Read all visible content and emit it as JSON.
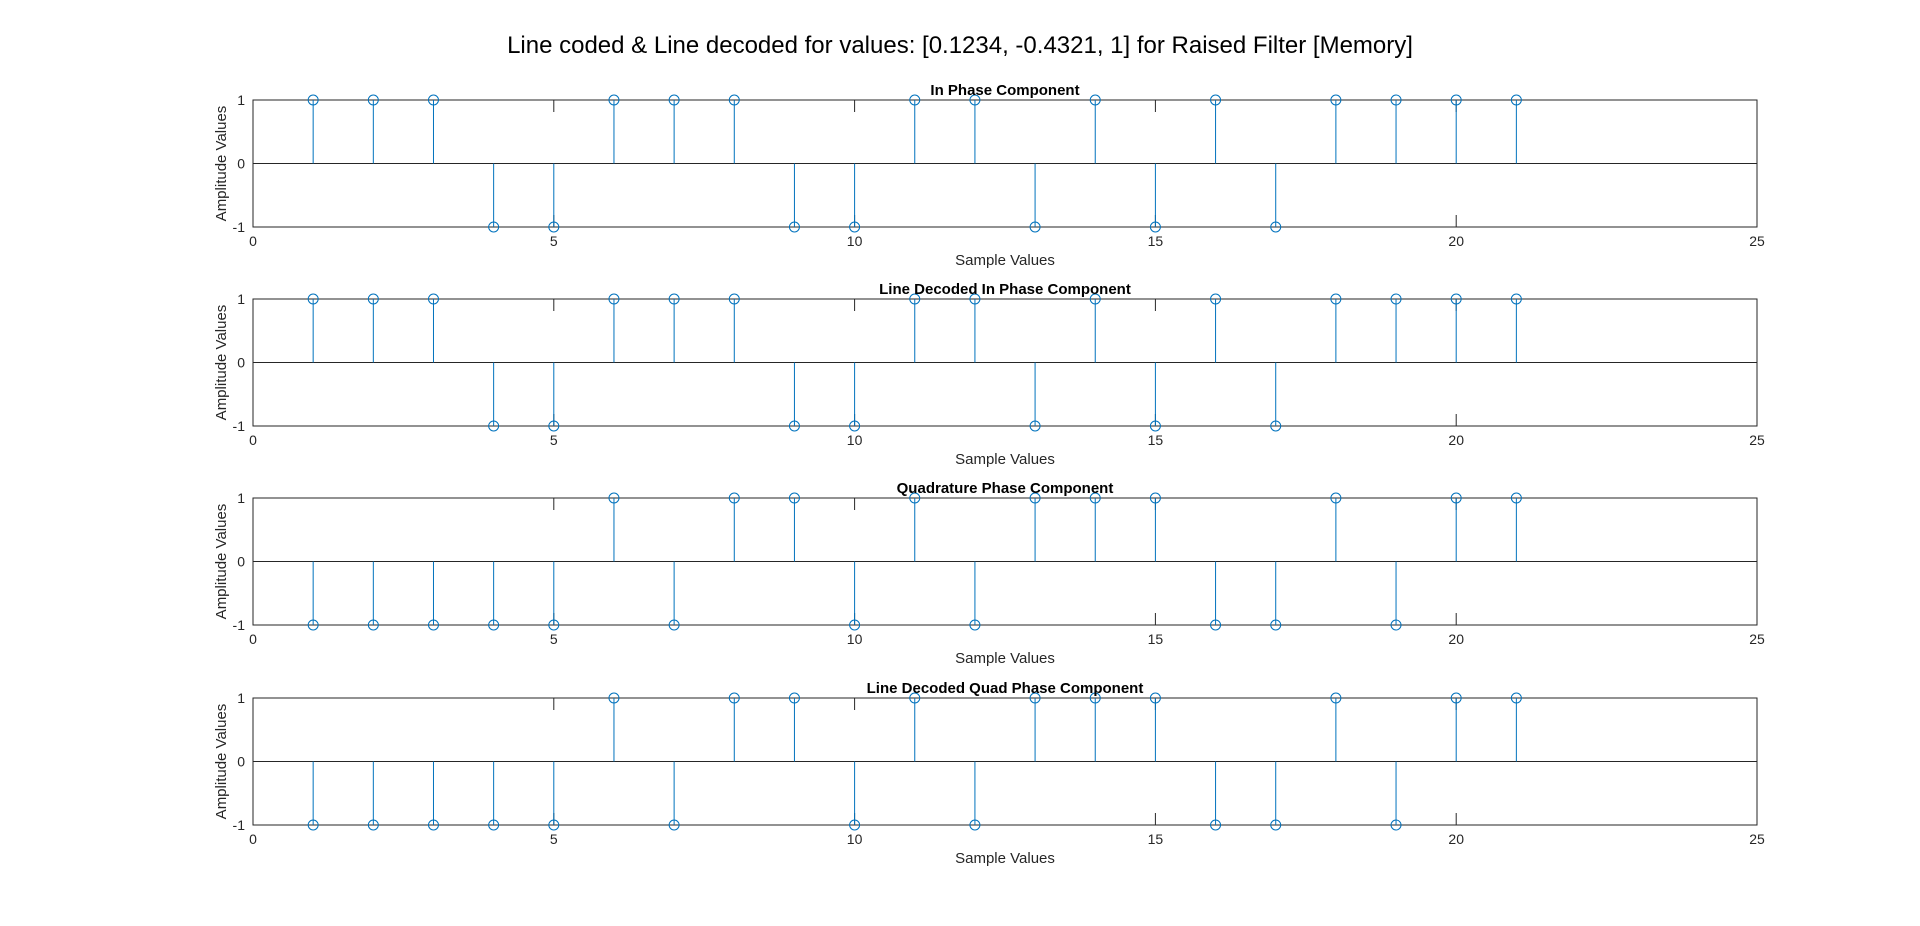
{
  "figure_title": "Line coded & Line decoded for values: [0.1234, -0.4321, 1] for Raised Filter [Memory]",
  "colors": {
    "stem": "#0072BD",
    "axes": "#262626",
    "background": "#ffffff"
  },
  "chart_data": [
    {
      "type": "stem",
      "title": "In Phase Component",
      "xlabel": "Sample Values",
      "ylabel": "Amplitude Values",
      "xlim": [
        0,
        25
      ],
      "ylim": [
        -1,
        1
      ],
      "xticks": [
        0,
        5,
        10,
        15,
        20,
        25
      ],
      "yticks": [
        -1,
        0,
        1
      ],
      "grid": false,
      "x": [
        1,
        2,
        3,
        4,
        5,
        6,
        7,
        8,
        9,
        10,
        11,
        12,
        13,
        14,
        15,
        16,
        17,
        18,
        19,
        20,
        21
      ],
      "y": [
        1,
        1,
        1,
        -1,
        -1,
        1,
        1,
        1,
        -1,
        -1,
        1,
        1,
        -1,
        1,
        -1,
        1,
        -1,
        1,
        1,
        1,
        1
      ]
    },
    {
      "type": "stem",
      "title": "Line Decoded In Phase Component",
      "xlabel": "Sample Values",
      "ylabel": "Amplitude Values",
      "xlim": [
        0,
        25
      ],
      "ylim": [
        -1,
        1
      ],
      "xticks": [
        0,
        5,
        10,
        15,
        20,
        25
      ],
      "yticks": [
        -1,
        0,
        1
      ],
      "grid": false,
      "x": [
        1,
        2,
        3,
        4,
        5,
        6,
        7,
        8,
        9,
        10,
        11,
        12,
        13,
        14,
        15,
        16,
        17,
        18,
        19,
        20,
        21
      ],
      "y": [
        1,
        1,
        1,
        -1,
        -1,
        1,
        1,
        1,
        -1,
        -1,
        1,
        1,
        -1,
        1,
        -1,
        1,
        -1,
        1,
        1,
        1,
        1
      ]
    },
    {
      "type": "stem",
      "title": "Quadrature Phase Component",
      "xlabel": "Sample Values",
      "ylabel": "Amplitude Values",
      "xlim": [
        0,
        25
      ],
      "ylim": [
        -1,
        1
      ],
      "xticks": [
        0,
        5,
        10,
        15,
        20,
        25
      ],
      "yticks": [
        -1,
        0,
        1
      ],
      "grid": false,
      "x": [
        1,
        2,
        3,
        4,
        5,
        6,
        7,
        8,
        9,
        10,
        11,
        12,
        13,
        14,
        15,
        16,
        17,
        18,
        19,
        20,
        21
      ],
      "y": [
        -1,
        -1,
        -1,
        -1,
        -1,
        1,
        -1,
        1,
        1,
        -1,
        1,
        -1,
        1,
        1,
        1,
        -1,
        -1,
        1,
        -1,
        1,
        1
      ]
    },
    {
      "type": "stem",
      "title": "Line Decoded Quad Phase Component",
      "xlabel": "Sample Values",
      "ylabel": "Amplitude Values",
      "xlim": [
        0,
        25
      ],
      "ylim": [
        -1,
        1
      ],
      "xticks": [
        0,
        5,
        10,
        15,
        20,
        25
      ],
      "yticks": [
        -1,
        0,
        1
      ],
      "grid": false,
      "x": [
        1,
        2,
        3,
        4,
        5,
        6,
        7,
        8,
        9,
        10,
        11,
        12,
        13,
        14,
        15,
        16,
        17,
        18,
        19,
        20,
        21
      ],
      "y": [
        -1,
        -1,
        -1,
        -1,
        -1,
        1,
        -1,
        1,
        1,
        -1,
        1,
        -1,
        1,
        1,
        1,
        -1,
        -1,
        1,
        -1,
        1,
        1
      ]
    }
  ]
}
